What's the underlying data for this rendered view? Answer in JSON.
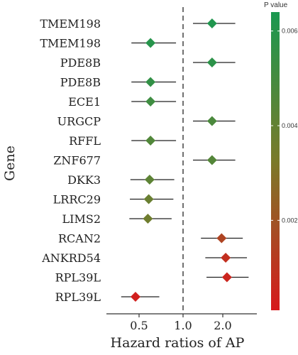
{
  "chart_data": {
    "type": "forest",
    "ylabel": "Gene",
    "xlabel": "Hazard ratios of AP",
    "x_ticks": [
      "0.5",
      "1.0",
      "2.0"
    ],
    "x_tick_values": [
      0.5,
      1.0,
      2.0
    ],
    "reference_line": 1.0,
    "xlim": [
      0.0,
      2.75
    ],
    "legend": {
      "title": "P value",
      "ticks": [
        "0.006",
        "0.004",
        "0.002"
      ],
      "tick_values": [
        0.006,
        0.004,
        0.002
      ],
      "range": [
        0.0001,
        0.0064
      ],
      "colors": {
        "low": "#d7191c",
        "mid": "#7a7a2a",
        "high": "#1a9850"
      }
    },
    "rows": [
      {
        "gene": "TMEM198",
        "hr": 1.73,
        "low": 1.25,
        "high": 2.3,
        "p": 0.0062
      },
      {
        "gene": "TMEM198",
        "hr": 0.63,
        "low": 0.35,
        "high": 0.92,
        "p": 0.006
      },
      {
        "gene": "PDE8B",
        "hr": 1.73,
        "low": 1.25,
        "high": 2.3,
        "p": 0.0058
      },
      {
        "gene": "PDE8B",
        "hr": 0.63,
        "low": 0.35,
        "high": 0.92,
        "p": 0.0056
      },
      {
        "gene": "ECE1",
        "hr": 0.63,
        "low": 0.35,
        "high": 0.92,
        "p": 0.0052
      },
      {
        "gene": "URGCP",
        "hr": 1.73,
        "low": 1.25,
        "high": 2.3,
        "p": 0.0048
      },
      {
        "gene": "RFFL",
        "hr": 0.63,
        "low": 0.35,
        "high": 0.92,
        "p": 0.0046
      },
      {
        "gene": "ZNF677",
        "hr": 1.73,
        "low": 1.25,
        "high": 2.3,
        "p": 0.0045
      },
      {
        "gene": "DKK3",
        "hr": 0.62,
        "low": 0.33,
        "high": 0.9,
        "p": 0.0042
      },
      {
        "gene": "LRRC29",
        "hr": 0.61,
        "low": 0.32,
        "high": 0.89,
        "p": 0.0038
      },
      {
        "gene": "LIMS2",
        "hr": 0.6,
        "low": 0.31,
        "high": 0.87,
        "p": 0.0036
      },
      {
        "gene": "RCAN2",
        "hr": 1.97,
        "low": 1.45,
        "high": 2.48,
        "p": 0.0015
      },
      {
        "gene": "ANKRD54",
        "hr": 2.07,
        "low": 1.56,
        "high": 2.58,
        "p": 0.0008
      },
      {
        "gene": "RPL39L",
        "hr": 2.1,
        "low": 1.59,
        "high": 2.62,
        "p": 0.0005
      },
      {
        "gene": "RPL39L",
        "hr": 0.43,
        "low": 0.15,
        "high": 0.73,
        "p": 0.0003
      }
    ]
  }
}
